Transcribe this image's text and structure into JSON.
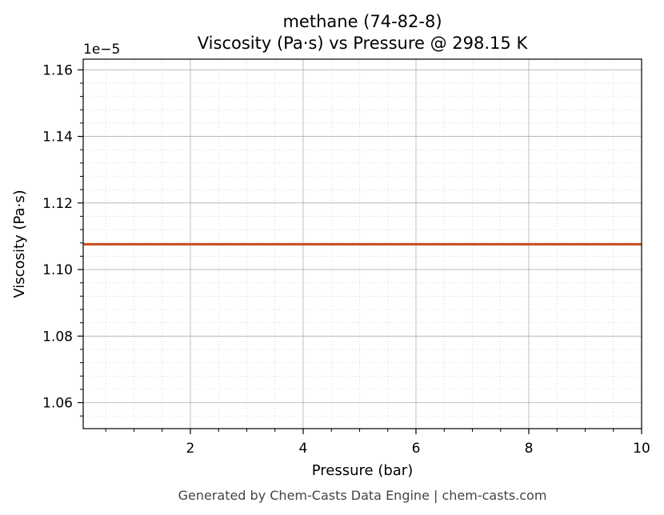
{
  "chart_data": {
    "type": "line",
    "title_line1": "methane (74-82-8)",
    "title_line2": "Viscosity (Pa·s) vs Pressure @ 298.15 K",
    "xlabel": "Pressure (bar)",
    "ylabel": "Viscosity (Pa·s)",
    "y_offset_label": "1e−5",
    "xlim": [
      0.1,
      10
    ],
    "ylim": [
      1.0522,
      1.1632
    ],
    "x_ticks": [
      2,
      4,
      6,
      8,
      10
    ],
    "x_tick_labels": [
      "2",
      "4",
      "6",
      "8",
      "10"
    ],
    "y_ticks": [
      1.06,
      1.08,
      1.1,
      1.12,
      1.14,
      1.16
    ],
    "y_tick_labels": [
      "1.06",
      "1.08",
      "1.10",
      "1.12",
      "1.14",
      "1.16"
    ],
    "grid": true,
    "minor_grid": true,
    "series": [
      {
        "color": "#c85428",
        "x": [
          0.1,
          1,
          2,
          3,
          4,
          5,
          6,
          7,
          8,
          9,
          10
        ],
        "y": [
          1.1076,
          1.1076,
          1.1076,
          1.1076,
          1.1076,
          1.1076,
          1.1076,
          1.1076,
          1.1076,
          1.1076,
          1.1076
        ]
      }
    ]
  },
  "footer": "Generated by Chem-Casts Data Engine | chem-casts.com"
}
